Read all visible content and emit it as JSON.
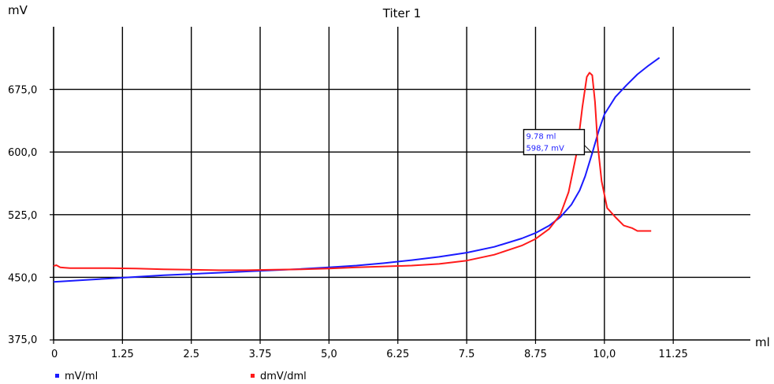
{
  "chart_data": {
    "type": "line",
    "title": "Titer 1",
    "xlabel": "ml",
    "ylabel": "mV",
    "xlim": [
      0,
      12.65
    ],
    "ylim": [
      375,
      750
    ],
    "x_ticks": [
      "0",
      "1.25",
      "2.5",
      "3.75",
      "5,0",
      "6.25",
      "7.5",
      "8.75",
      "10,0",
      "11.25"
    ],
    "y_ticks": [
      "375,0",
      "450,0",
      "525,0",
      "600,0",
      "675,0"
    ],
    "grid": true,
    "legend_position": "bottom-left",
    "series": [
      {
        "name": "mV/ml",
        "color": "#1a1aff",
        "x": [
          0,
          0.5,
          1.0,
          1.5,
          2.0,
          2.5,
          3.0,
          3.5,
          4.0,
          4.5,
          5.0,
          5.5,
          6.0,
          6.5,
          7.0,
          7.5,
          8.0,
          8.5,
          8.75,
          9.0,
          9.2,
          9.4,
          9.55,
          9.65,
          9.78,
          9.9,
          10.0,
          10.2,
          10.4,
          10.6,
          10.8,
          11.0
        ],
        "values": [
          444.5,
          446.5,
          448.5,
          450.5,
          452.5,
          454.0,
          455.5,
          457.0,
          458.5,
          460.0,
          462.0,
          464.0,
          467.0,
          470.5,
          474.5,
          479.5,
          486.5,
          496.5,
          503.0,
          512.0,
          522.0,
          537.0,
          554.0,
          571.0,
          598.7,
          626.0,
          645.0,
          666.0,
          680.0,
          693.0,
          703.5,
          713.0
        ]
      },
      {
        "name": "dmV/dml",
        "color": "#ff1a1a",
        "x": [
          0,
          0.05,
          0.12,
          0.2,
          0.3,
          0.6,
          1.0,
          1.5,
          2.0,
          2.5,
          3.0,
          3.5,
          4.0,
          4.5,
          5.0,
          5.5,
          6.0,
          6.5,
          7.0,
          7.5,
          8.0,
          8.5,
          8.75,
          9.0,
          9.2,
          9.35,
          9.5,
          9.6,
          9.68,
          9.73,
          9.78,
          9.83,
          9.88,
          9.95,
          10.05,
          10.2,
          10.35,
          10.5,
          10.6,
          10.75,
          10.85
        ],
        "values": [
          463.5,
          464.5,
          462.0,
          461.5,
          461.0,
          461.0,
          461.0,
          460.5,
          459.5,
          459.0,
          458.5,
          458.5,
          459.0,
          459.5,
          460.5,
          462.0,
          463.0,
          464.0,
          466.0,
          470.0,
          477.0,
          488.0,
          496.0,
          508.0,
          525.0,
          552.0,
          600.0,
          654.0,
          690.0,
          695.0,
          692.0,
          660.0,
          608.0,
          565.0,
          533.0,
          522.0,
          512.0,
          509.0,
          505.5,
          505.5,
          505.5
        ]
      }
    ],
    "annotation": {
      "x_text": "9.78 ml",
      "y_text": "598,7 mV",
      "x": 9.78,
      "y": 598.7
    }
  }
}
